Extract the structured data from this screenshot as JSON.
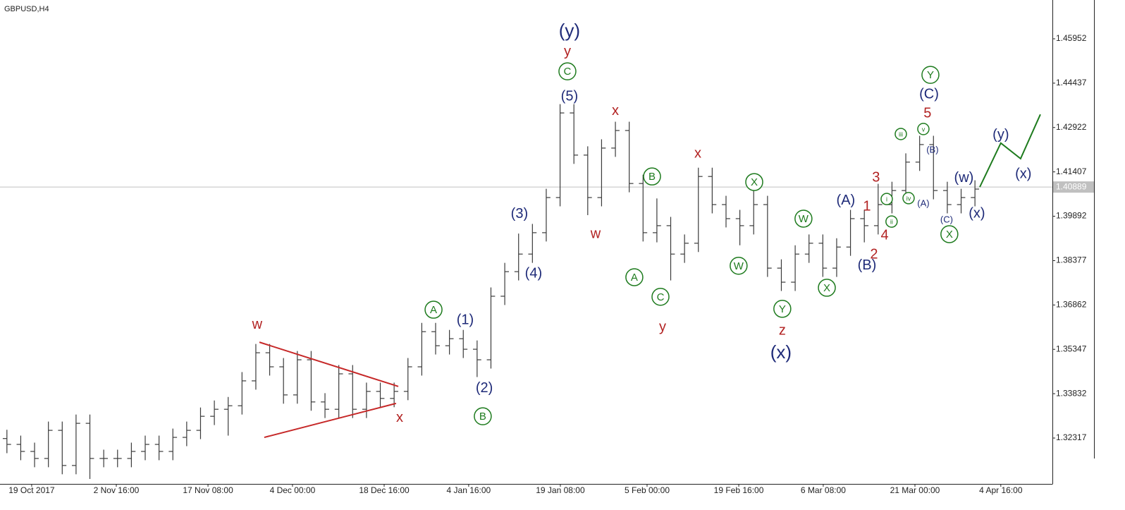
{
  "chart_data": {
    "type": "ohlc",
    "title": "GBPUSD,H4",
    "color": "#3a3a3a",
    "open": [
      1.323,
      1.321,
      1.3186,
      1.3162,
      1.3258,
      1.3138,
      1.3282,
      1.3162,
      1.3162,
      1.3162,
      1.3186,
      1.321,
      1.3186,
      1.3234,
      1.3258,
      1.3306,
      1.333,
      1.3342,
      1.3427,
      1.3523,
      1.3475,
      1.3379,
      1.3499,
      1.3355,
      1.333,
      1.3451,
      1.333,
      1.3391,
      1.3367,
      1.3391,
      1.3475,
      1.3595,
      1.3547,
      1.3571,
      1.3535,
      1.3499,
      1.3716,
      1.38,
      1.386,
      1.3933,
      1.4053,
      1.4342,
      1.4198,
      1.4053,
      1.4222,
      1.4282,
      1.4101,
      1.3933,
      1.3957,
      1.386,
      1.3897,
      1.4125,
      1.4029,
      1.3981,
      1.3957,
      1.4029,
      1.3812,
      1.3764,
      1.386,
      1.3897,
      1.3812,
      1.3884,
      1.3981,
      1.3957,
      1.4029,
      1.4077,
      1.4174,
      1.4234,
      1.4077,
      1.4029,
      1.4053
    ],
    "high": [
      1.326,
      1.324,
      1.3216,
      1.3288,
      1.3288,
      1.3312,
      1.3312,
      1.3192,
      1.3192,
      1.3216,
      1.324,
      1.324,
      1.3264,
      1.3288,
      1.3336,
      1.336,
      1.3372,
      1.3457,
      1.3553,
      1.3553,
      1.3505,
      1.3529,
      1.3529,
      1.3385,
      1.3481,
      1.3481,
      1.3421,
      1.3421,
      1.3421,
      1.3505,
      1.3625,
      1.3625,
      1.3601,
      1.3601,
      1.3565,
      1.3746,
      1.383,
      1.393,
      1.3963,
      1.4083,
      1.4372,
      1.4372,
      1.4228,
      1.4252,
      1.4312,
      1.4312,
      1.4131,
      1.405,
      1.3987,
      1.3927,
      1.4155,
      1.4155,
      1.4059,
      1.4011,
      1.408,
      1.4059,
      1.3842,
      1.389,
      1.3927,
      1.3927,
      1.3914,
      1.4011,
      1.4011,
      1.41,
      1.4107,
      1.4204,
      1.4264,
      1.4264,
      1.4107,
      1.4083,
      1.4112
    ],
    "low": [
      1.318,
      1.3156,
      1.3132,
      1.3132,
      1.3108,
      1.3108,
      1.3092,
      1.3132,
      1.3132,
      1.3132,
      1.3156,
      1.3156,
      1.3156,
      1.3204,
      1.3228,
      1.3276,
      1.324,
      1.3312,
      1.3397,
      1.3445,
      1.3349,
      1.3349,
      1.3325,
      1.33,
      1.33,
      1.33,
      1.33,
      1.3337,
      1.3337,
      1.3361,
      1.3445,
      1.3517,
      1.3517,
      1.3505,
      1.344,
      1.3469,
      1.3686,
      1.377,
      1.383,
      1.3903,
      1.4023,
      1.4168,
      1.3993,
      1.4023,
      1.4192,
      1.4071,
      1.3903,
      1.39,
      1.377,
      1.383,
      1.3867,
      1.3999,
      1.3951,
      1.389,
      1.3927,
      1.3782,
      1.3734,
      1.3734,
      1.383,
      1.3782,
      1.3782,
      1.3854,
      1.39,
      1.3927,
      1.3999,
      1.4047,
      1.4144,
      1.4047,
      1.3999,
      1.3999,
      1.4023
    ],
    "close": [
      1.321,
      1.3186,
      1.3162,
      1.3258,
      1.3138,
      1.3282,
      1.3162,
      1.3162,
      1.3162,
      1.3186,
      1.321,
      1.3186,
      1.3234,
      1.3258,
      1.3306,
      1.333,
      1.3342,
      1.3427,
      1.3523,
      1.3475,
      1.3379,
      1.3499,
      1.3355,
      1.333,
      1.3451,
      1.333,
      1.3391,
      1.3367,
      1.3391,
      1.3475,
      1.3595,
      1.3547,
      1.3571,
      1.3535,
      1.3499,
      1.3716,
      1.38,
      1.386,
      1.3933,
      1.4053,
      1.4342,
      1.4198,
      1.4053,
      1.4222,
      1.4282,
      1.4101,
      1.3933,
      1.3957,
      1.386,
      1.3897,
      1.4125,
      1.4029,
      1.3981,
      1.3957,
      1.4029,
      1.3812,
      1.3764,
      1.386,
      1.3897,
      1.3812,
      1.3884,
      1.3981,
      1.3957,
      1.4029,
      1.4077,
      1.4174,
      1.4234,
      1.4077,
      1.4029,
      1.4053,
      1.4082
    ],
    "xlim": [
      -0.5,
      75.6
    ],
    "xticks": [
      {
        "value": 1.79,
        "label": "19 Oct 2017"
      },
      {
        "value": 7.91,
        "label": "2 Nov 16:00"
      },
      {
        "value": 14.54,
        "label": "17 Nov 08:00"
      },
      {
        "value": 20.65,
        "label": "4 Dec 00:00"
      },
      {
        "value": 27.28,
        "label": "18 Dec 16:00"
      },
      {
        "value": 33.39,
        "label": "4 Jan 16:00"
      },
      {
        "value": 40.02,
        "label": "19 Jan 08:00"
      },
      {
        "value": 46.29,
        "label": "5 Feb 00:00"
      },
      {
        "value": 52.92,
        "label": "19 Feb 16:00"
      },
      {
        "value": 59.03,
        "label": "6 Mar 08:00"
      },
      {
        "value": 65.66,
        "label": "21 Mar 00:00"
      },
      {
        "value": 71.87,
        "label": "4 Apr 16:00"
      }
    ],
    "ylim": [
      1.30751,
      1.47277
    ],
    "yticks": [
      1.45952,
      1.44437,
      1.42922,
      1.41407,
      1.39892,
      1.38377,
      1.36862,
      1.35347,
      1.33832,
      1.32317
    ],
    "current_price": 1.40889,
    "annotations": [
      {
        "text": "(y)",
        "color": "#1e2a78",
        "size": "big",
        "x": 40.68,
        "y": 1.4622
      },
      {
        "text": "y",
        "color": "#b22222",
        "size": "normal",
        "x": 40.53,
        "y": 1.4552
      },
      {
        "text": "C",
        "color": "#1e7b1e",
        "size": "normal",
        "circle": true,
        "x": 40.53,
        "y": 1.4484
      },
      {
        "text": "(5)",
        "color": "#1e2a78",
        "size": "normal",
        "x": 40.68,
        "y": 1.44
      },
      {
        "text": "x",
        "color": "#b22222",
        "size": "normal",
        "x": 44.0,
        "y": 1.435
      },
      {
        "text": "w",
        "color": "#b22222",
        "size": "normal",
        "x": 42.57,
        "y": 1.393
      },
      {
        "text": "x",
        "color": "#b22222",
        "size": "normal",
        "x": 49.96,
        "y": 1.4205
      },
      {
        "text": "B",
        "color": "#1e7b1e",
        "size": "normal",
        "circle": true,
        "x": 46.65,
        "y": 1.4125
      },
      {
        "text": "X",
        "color": "#1e7b1e",
        "size": "normal",
        "circle": true,
        "x": 54.04,
        "y": 1.4106
      },
      {
        "text": "W",
        "color": "#1e7b1e",
        "size": "normal",
        "circle": true,
        "x": 57.6,
        "y": 1.3981
      },
      {
        "text": "(A)",
        "color": "#1e2a78",
        "size": "normal",
        "x": 60.66,
        "y": 1.4044
      },
      {
        "text": "1",
        "color": "#b22222",
        "size": "normal",
        "x": 62.19,
        "y": 1.4024
      },
      {
        "text": "3",
        "color": "#b22222",
        "size": "normal",
        "x": 62.85,
        "y": 1.4123
      },
      {
        "text": "(B)",
        "color": "#1e2a78",
        "size": "normal",
        "x": 62.19,
        "y": 1.3822
      },
      {
        "text": "2",
        "color": "#b22222",
        "size": "normal",
        "x": 62.7,
        "y": 1.386
      },
      {
        "text": "4",
        "color": "#b22222",
        "size": "normal",
        "x": 63.47,
        "y": 1.3925
      },
      {
        "text": "Y",
        "color": "#1e7b1e",
        "size": "normal",
        "circle": true,
        "x": 66.78,
        "y": 1.4472
      },
      {
        "text": "(C)",
        "color": "#1e2a78",
        "size": "normal",
        "x": 66.68,
        "y": 1.4407
      },
      {
        "text": "5",
        "color": "#b22222",
        "size": "normal",
        "x": 66.57,
        "y": 1.4342
      },
      {
        "text": "iii",
        "color": "#1e7b1e",
        "size": "small",
        "circle": true,
        "x": 64.64,
        "y": 1.427
      },
      {
        "text": "v",
        "color": "#1e7b1e",
        "size": "small",
        "circle": true,
        "x": 66.27,
        "y": 1.4287
      },
      {
        "text": "(B)",
        "color": "#1e2a78",
        "size": "small",
        "x": 66.93,
        "y": 1.4217
      },
      {
        "text": "i",
        "color": "#1e7b1e",
        "size": "small",
        "circle": true,
        "x": 63.62,
        "y": 1.4048
      },
      {
        "text": "iv",
        "color": "#1e7b1e",
        "size": "small",
        "circle": true,
        "x": 65.2,
        "y": 1.4051
      },
      {
        "text": "(A)",
        "color": "#1e2a78",
        "size": "small",
        "x": 66.27,
        "y": 1.4034
      },
      {
        "text": "ii",
        "color": "#1e7b1e",
        "size": "small",
        "circle": true,
        "x": 63.97,
        "y": 1.3971
      },
      {
        "text": "(C)",
        "color": "#1e2a78",
        "size": "small",
        "x": 67.95,
        "y": 1.3978
      },
      {
        "text": "X",
        "color": "#1e7b1e",
        "size": "normal",
        "circle": true,
        "x": 68.15,
        "y": 1.3928
      },
      {
        "text": "(w)",
        "color": "#1e2a78",
        "size": "normal",
        "x": 69.2,
        "y": 1.4121
      },
      {
        "text": "(x)",
        "color": "#1e2a78",
        "size": "normal",
        "x": 70.14,
        "y": 1.4
      },
      {
        "text": "(y)",
        "color": "#1e2a78",
        "size": "normal",
        "x": 71.87,
        "y": 1.4268
      },
      {
        "text": "(x)",
        "color": "#1e2a78",
        "size": "normal",
        "x": 73.5,
        "y": 1.4135
      },
      {
        "text": "A",
        "color": "#1e7b1e",
        "size": "normal",
        "circle": true,
        "x": 45.37,
        "y": 1.3781
      },
      {
        "text": "C",
        "color": "#1e7b1e",
        "size": "normal",
        "circle": true,
        "x": 47.26,
        "y": 1.3714
      },
      {
        "text": "y",
        "color": "#b22222",
        "size": "normal",
        "x": 47.41,
        "y": 1.3612
      },
      {
        "text": "W",
        "color": "#1e7b1e",
        "size": "normal",
        "circle": true,
        "x": 52.91,
        "y": 1.382
      },
      {
        "text": "Y",
        "color": "#1e7b1e",
        "size": "normal",
        "circle": true,
        "x": 56.07,
        "y": 1.3673
      },
      {
        "text": "X",
        "color": "#1e7b1e",
        "size": "normal",
        "circle": true,
        "x": 59.29,
        "y": 1.3745
      },
      {
        "text": "z",
        "color": "#b22222",
        "size": "normal",
        "x": 56.07,
        "y": 1.36
      },
      {
        "text": "(x)",
        "color": "#1e2a78",
        "size": "big",
        "x": 55.97,
        "y": 1.3523
      },
      {
        "text": "(3)",
        "color": "#1e2a78",
        "size": "normal",
        "x": 37.06,
        "y": 1.3998
      },
      {
        "text": "(4)",
        "color": "#1e2a78",
        "size": "normal",
        "x": 38.08,
        "y": 1.3795
      },
      {
        "text": "(1)",
        "color": "#1e2a78",
        "size": "normal",
        "x": 33.14,
        "y": 1.3636
      },
      {
        "text": "A",
        "color": "#1e7b1e",
        "size": "normal",
        "circle": true,
        "x": 30.85,
        "y": 1.367
      },
      {
        "text": "(2)",
        "color": "#1e2a78",
        "size": "normal",
        "x": 34.52,
        "y": 1.3403
      },
      {
        "text": "B",
        "color": "#1e7b1e",
        "size": "normal",
        "circle": true,
        "x": 34.41,
        "y": 1.3306
      },
      {
        "text": "w",
        "color": "#b22222",
        "size": "normal",
        "x": 18.1,
        "y": 1.362
      },
      {
        "text": "x",
        "color": "#b22222",
        "size": "normal",
        "x": 28.4,
        "y": 1.3302
      }
    ],
    "trendlines": [
      {
        "color": "#c62828",
        "x": [
          18.26,
          28.3
        ],
        "y": [
          1.3559,
          1.3408
        ]
      },
      {
        "color": "#c62828",
        "x": [
          18.61,
          28.14
        ],
        "y": [
          1.3234,
          1.335
        ]
      },
      {
        "color": "#1e7b1e",
        "x": [
          70.35,
          71.87,
          73.3,
          74.73
        ],
        "y": [
          1.4089,
          1.4239,
          1.4186,
          1.4337
        ]
      }
    ]
  }
}
